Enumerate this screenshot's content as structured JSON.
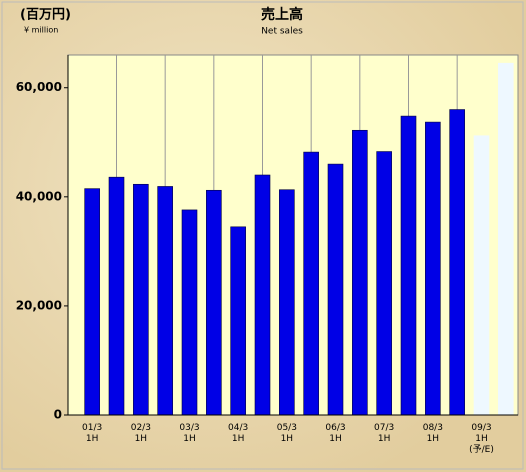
{
  "chart_data": {
    "type": "bar",
    "title": "売上高",
    "subtitle": "Net sales",
    "unit_label": "(百万円)",
    "unit_sublabel": "¥ million",
    "categories": [
      "01/3\n1H",
      null,
      "02/3\n1H",
      null,
      "03/3\n1H",
      null,
      "04/3\n1H",
      null,
      "05/3\n1H",
      null,
      "06/3\n1H",
      null,
      "07/3\n1H",
      null,
      "08/3\n1H",
      null,
      "09/3\n1H\n(予/E)",
      null
    ],
    "values": [
      41500,
      43600,
      42300,
      41900,
      37600,
      41200,
      34500,
      44000,
      41300,
      48200,
      46000,
      52200,
      48300,
      54800,
      53700,
      56000,
      51200,
      64500
    ],
    "colors": [
      "#0000e6",
      "#0000e6",
      "#0000e6",
      "#0000e6",
      "#0000e6",
      "#0000e6",
      "#0000e6",
      "#0000e6",
      "#0000e6",
      "#0000e6",
      "#0000e6",
      "#0000e6",
      "#0000e6",
      "#0000e6",
      "#0000e6",
      "#0000e6",
      "#eef8ff",
      "#eef8ff"
    ],
    "ylim": [
      0,
      66000
    ],
    "yticks": [
      {
        "value": 0,
        "label": "0"
      },
      {
        "value": 20000,
        "label": "20,000"
      },
      {
        "value": 40000,
        "label": "40,000"
      },
      {
        "value": 60000,
        "label": "60,000"
      }
    ]
  }
}
